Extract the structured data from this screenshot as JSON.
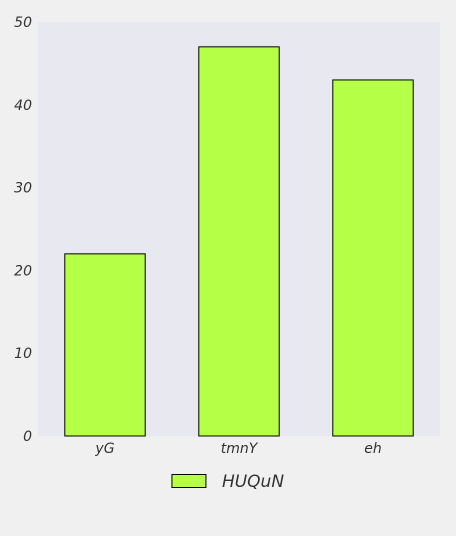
{
  "chart_data": {
    "type": "bar",
    "categories": [
      "yG",
      "tmnY",
      "eh"
    ],
    "series": [
      {
        "name": "HUQuN",
        "values": [
          22,
          47,
          43
        ],
        "color": "#b5ff47"
      }
    ],
    "ylim": [
      0,
      50
    ],
    "yticks": [
      0,
      10,
      20,
      30,
      40,
      50
    ],
    "title": "",
    "xlabel": "",
    "ylabel": "",
    "grid": false,
    "legend_position": "bottom-center",
    "colors": {
      "plot_background": "#e8e8f0",
      "figure_background": "#f0f0f0",
      "bar_edge": "#000000",
      "text": "#333333"
    }
  }
}
